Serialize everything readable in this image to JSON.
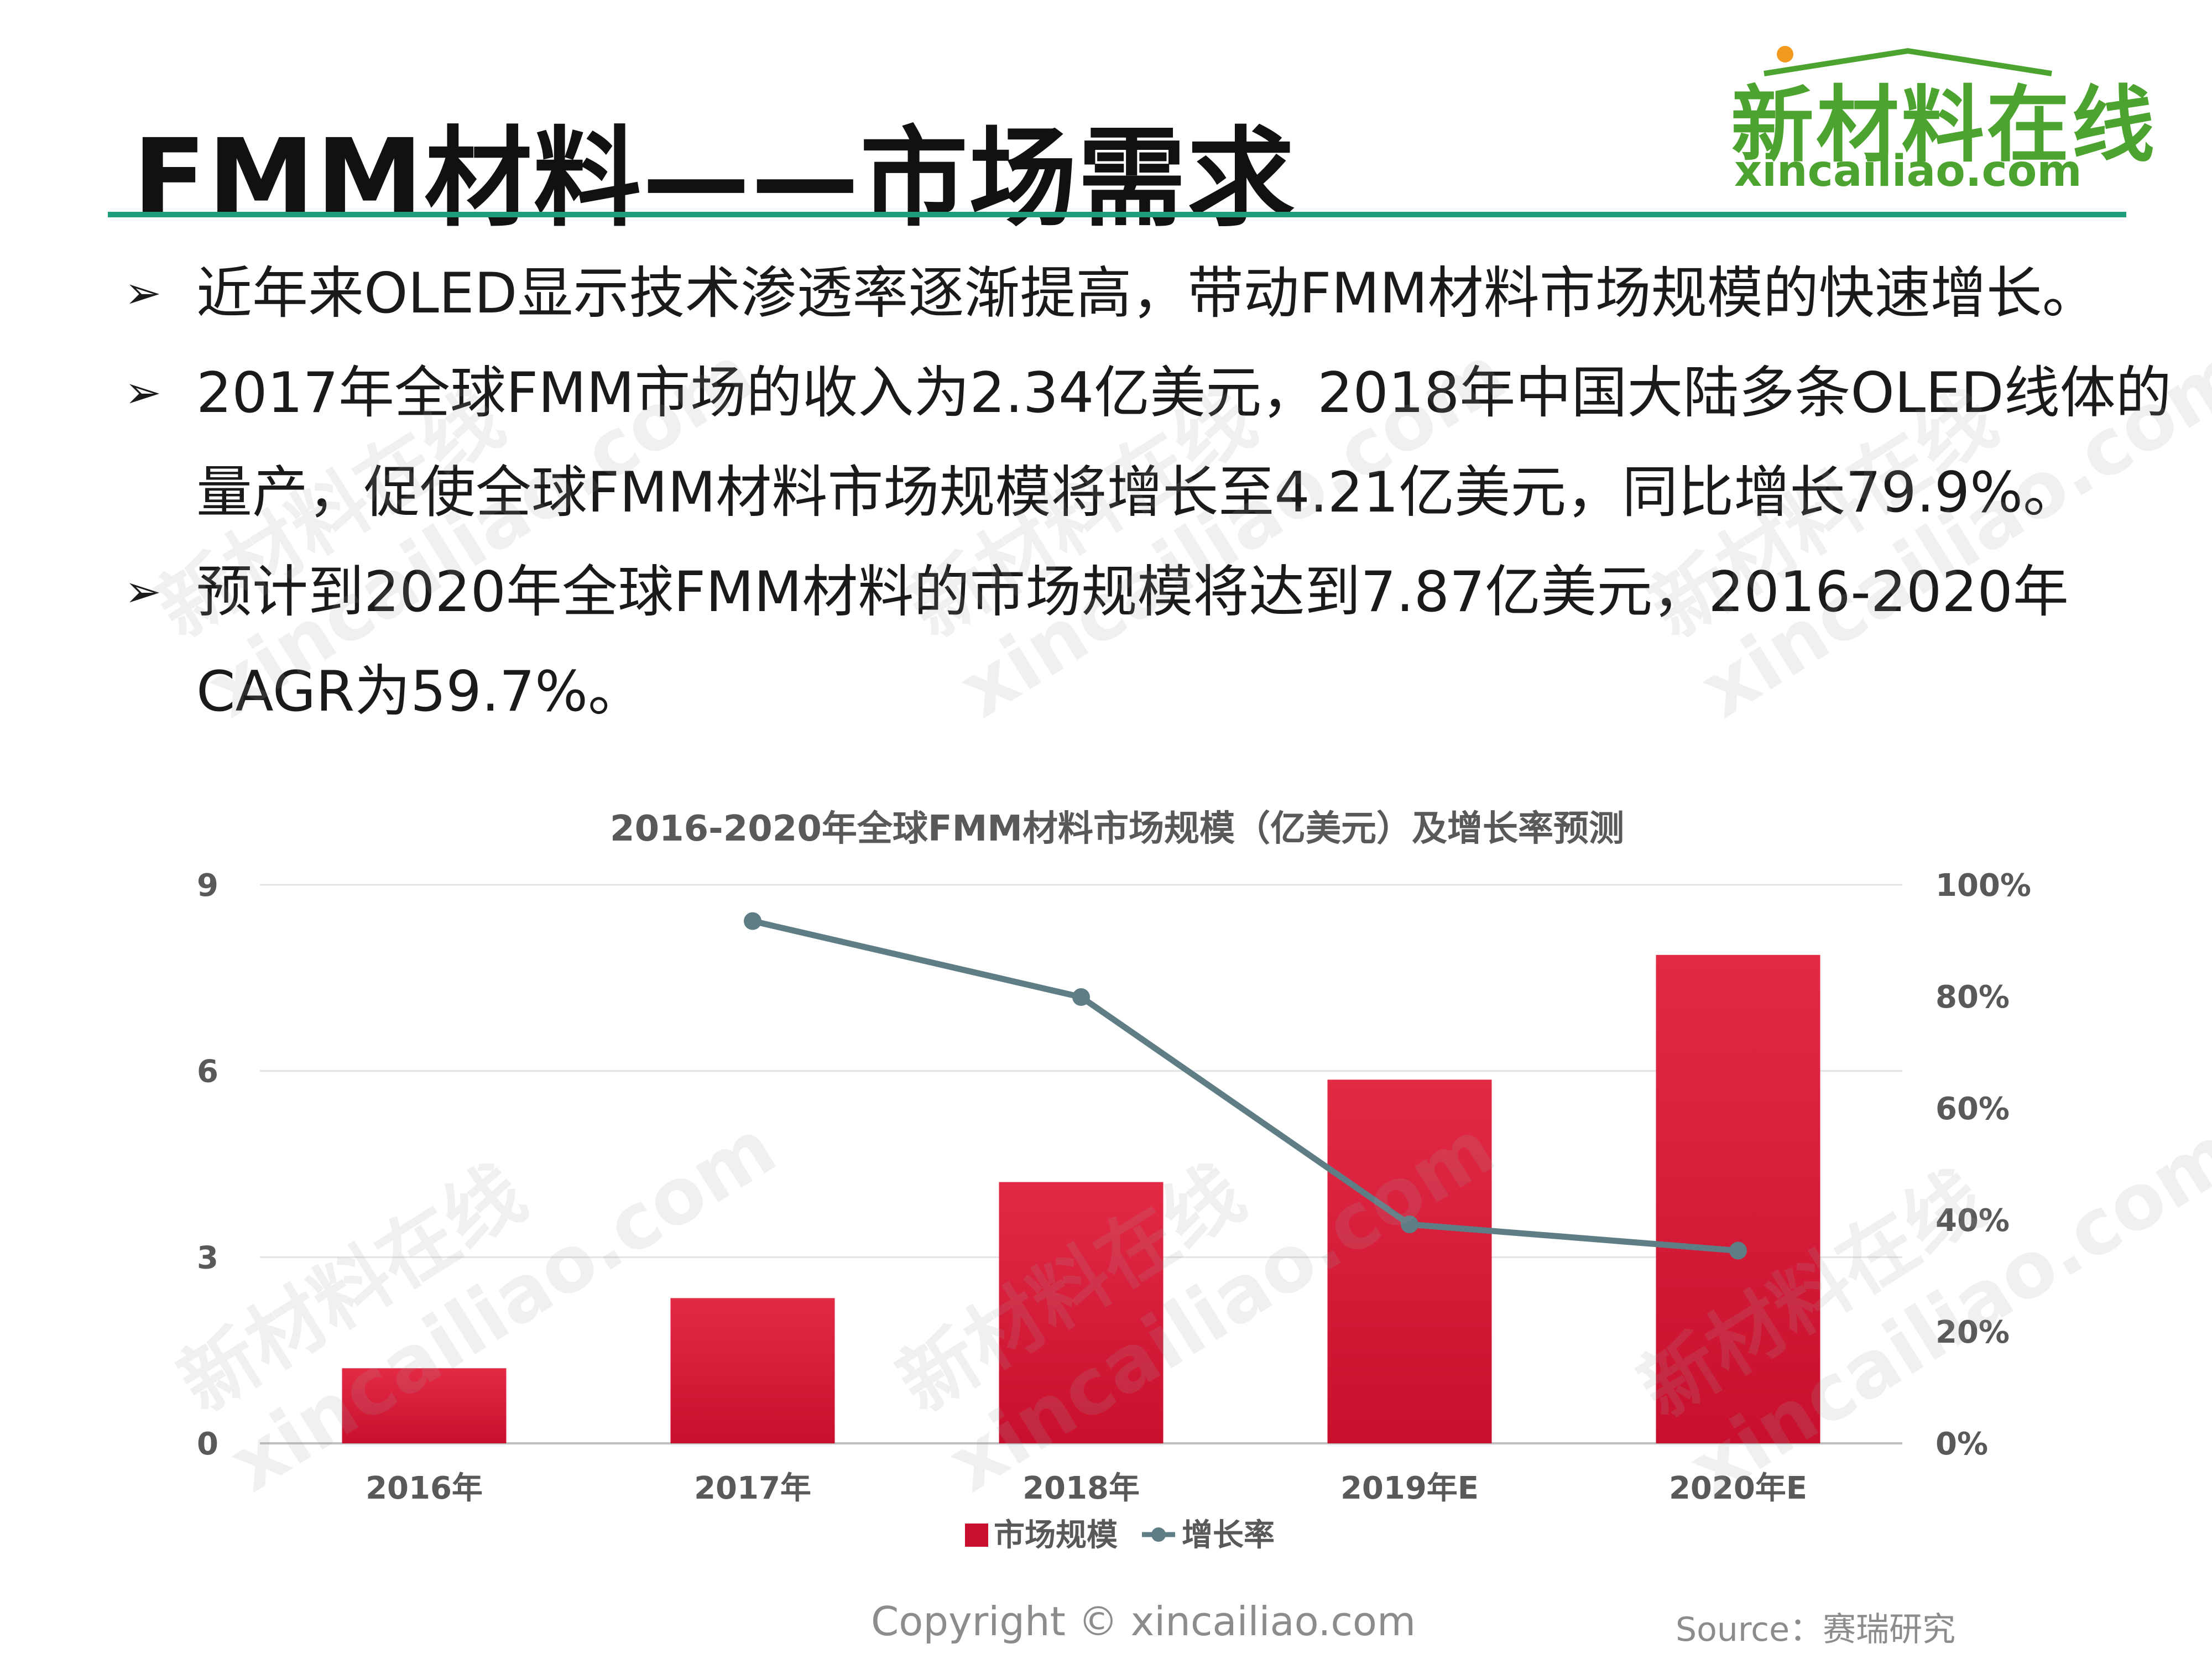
{
  "header": {
    "title": "FMM材料——市场需求"
  },
  "logo": {
    "name": "新材料在线",
    "url": "xincailiao.com"
  },
  "bullets": [
    "近年来OLED显示技术渗透率逐渐提高，带动FMM材料市场规模的快速增长。",
    "2017年全球FMM市场的收入为2.34亿美元，2018年中国大陆多条OLED线体的量产，促使全球FMM材料市场规模将增长至4.21亿美元，同比增长79.9%。",
    "预计到2020年全球FMM材料的市场规模将达到7.87亿美元，2016-2020年CAGR为59.7%。"
  ],
  "bullet_marker": "➢",
  "watermark": {
    "line1": "新材料在线",
    "line2": "xincailiao.com"
  },
  "footer": {
    "copyright": "Copyright © xincailiao.com",
    "source": "Source：赛瑞研究"
  },
  "colors": {
    "bar": "#c8102e",
    "bar_light": "#e32a45",
    "line": "#5f7d85",
    "accent_rule": "#1e9c7c",
    "logo_green": "#4ca32f"
  },
  "chart_data": {
    "type": "bar",
    "title": "2016-2020年全球FMM材料市场规模（亿美元）及增长率预测",
    "categories": [
      "2016年",
      "2017年",
      "2018年",
      "2019年E",
      "2020年E"
    ],
    "series": [
      {
        "name": "市场规模",
        "type": "bar",
        "axis": "left",
        "values": [
          1.21,
          2.34,
          4.21,
          5.86,
          7.87
        ]
      },
      {
        "name": "增长率",
        "type": "line",
        "axis": "right",
        "values": [
          null,
          0.935,
          0.799,
          0.392,
          0.345
        ]
      }
    ],
    "y_left": {
      "min": 0,
      "max": 9,
      "ticks": [
        0,
        3,
        6,
        9
      ],
      "tick_labels": [
        "0",
        "3",
        "6",
        "9"
      ]
    },
    "y_right": {
      "min": 0,
      "max": 1,
      "ticks": [
        0,
        0.2,
        0.4,
        0.6,
        0.8,
        1.0
      ],
      "tick_labels": [
        "0%",
        "20%",
        "40%",
        "60%",
        "80%",
        "100%"
      ]
    },
    "grid": true,
    "legend": "bottom"
  }
}
